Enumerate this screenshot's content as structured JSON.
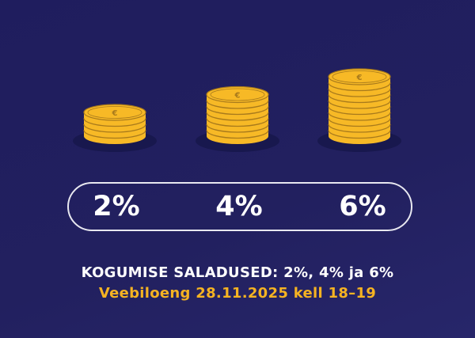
{
  "stacks": [
    {
      "label": "2%",
      "coins": 4
    },
    {
      "label": "4%",
      "coins": 7
    },
    {
      "label": "6%",
      "coins": 10
    }
  ],
  "coin_symbol": "€",
  "headline": "KOGUMISE SALADUSED: 2%, 4% ja 6%",
  "subline": "Veebiloeng 28.11.2025 kell 18–19",
  "colors": {
    "background": "#1f1d5e",
    "coin": "#f7b926",
    "coin_edge": "#a87a1c",
    "accent": "#f5b322",
    "text": "#ffffff"
  }
}
